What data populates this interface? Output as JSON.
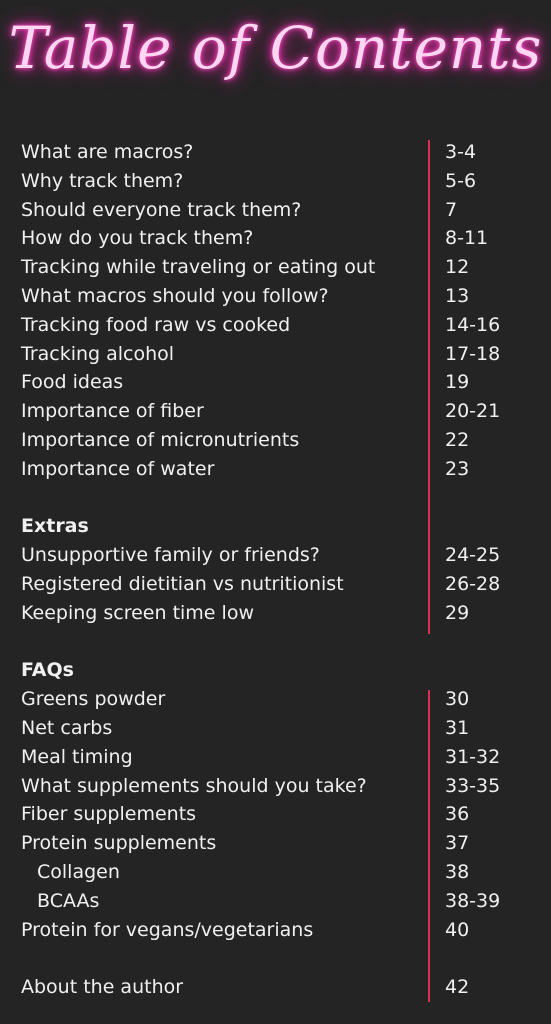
{
  "title": "Table of Contents",
  "main": [
    {
      "label": "What are macros?",
      "page": "3-4"
    },
    {
      "label": "Why track them?",
      "page": "5-6"
    },
    {
      "label": "Should everyone track them?",
      "page": "7"
    },
    {
      "label": "How do you track them?",
      "page": "8-11"
    },
    {
      "label": "Tracking while traveling or eating out",
      "page": "12"
    },
    {
      "label": "What macros should you follow?",
      "page": "13"
    },
    {
      "label": "Tracking food raw vs cooked",
      "page": "14-16"
    },
    {
      "label": "Tracking alcohol",
      "page": "17-18"
    },
    {
      "label": "Food ideas",
      "page": "19"
    },
    {
      "label": "Importance of fiber",
      "page": "20-21"
    },
    {
      "label": "Importance of micronutrients",
      "page": "22"
    },
    {
      "label": "Importance of water",
      "page": "23"
    }
  ],
  "extras": {
    "heading": "Extras",
    "entries": [
      {
        "label": "Unsupportive family or friends?",
        "page": "24-25"
      },
      {
        "label": "Registered dietitian vs nutritionist",
        "page": "26-28"
      },
      {
        "label": "Keeping screen time low",
        "page": "29"
      }
    ]
  },
  "faqs": {
    "heading": "FAQs",
    "entries": [
      {
        "label": "Greens powder",
        "page": "30"
      },
      {
        "label": "Net carbs",
        "page": "31"
      },
      {
        "label": "Meal timing",
        "page": "31-32"
      },
      {
        "label": "What supplements should you take?",
        "page": "33-35"
      },
      {
        "label": "Fiber supplements",
        "page": "36"
      },
      {
        "label": "Protein supplements",
        "page": "37",
        "sub": [
          {
            "label": "Collagen",
            "page": "38"
          },
          {
            "label": "BCAAs",
            "page": "38-39"
          }
        ]
      },
      {
        "label": "Protein for vegans/vegetarians",
        "page": "40"
      }
    ]
  },
  "about": {
    "label": "About the author",
    "page": "42"
  }
}
